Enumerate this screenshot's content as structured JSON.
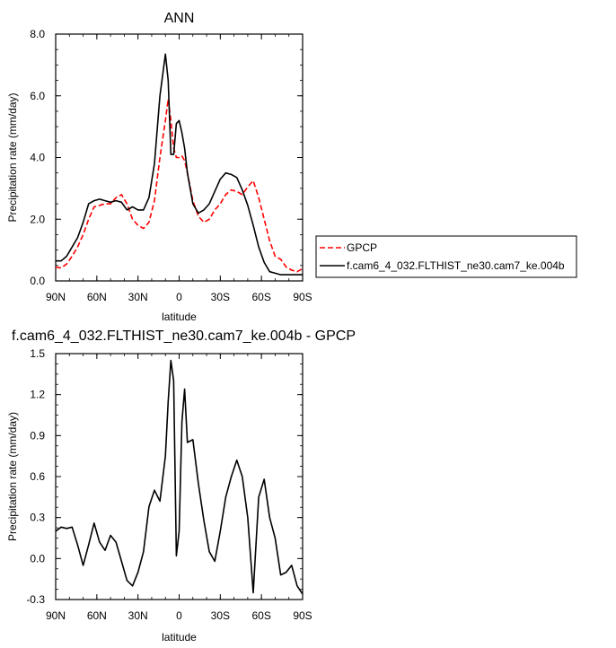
{
  "chart_data": [
    {
      "type": "line",
      "title": "ANN",
      "xlabel": "latitude",
      "ylabel": "Precipitation rate (mm/day)",
      "x_ticks": [
        "90N",
        "60N",
        "30N",
        "0",
        "30S",
        "60S",
        "90S"
      ],
      "x_tick_values": [
        -90,
        -60,
        -30,
        0,
        30,
        60,
        90
      ],
      "ylim": [
        0,
        8
      ],
      "y_ticks": [
        "0.0",
        "2.0",
        "4.0",
        "6.0",
        "8.0"
      ],
      "y_tick_values": [
        0,
        2,
        4,
        6,
        8
      ],
      "legend_placement": "right",
      "series": [
        {
          "name": "GPCP",
          "color": "#ff0000",
          "dash": true,
          "x": [
            -90,
            -86,
            -82,
            -78,
            -74,
            -70,
            -66,
            -62,
            -58,
            -54,
            -50,
            -46,
            -42,
            -38,
            -34,
            -30,
            -26,
            -22,
            -18,
            -14,
            -10,
            -8,
            -6,
            -4,
            -2,
            0,
            2,
            4,
            6,
            10,
            14,
            18,
            22,
            26,
            30,
            34,
            38,
            42,
            46,
            50,
            54,
            58,
            62,
            66,
            70,
            74,
            78,
            82,
            86,
            90
          ],
          "y": [
            0.45,
            0.42,
            0.55,
            0.8,
            1.1,
            1.5,
            2.0,
            2.4,
            2.45,
            2.5,
            2.5,
            2.7,
            2.8,
            2.5,
            2.0,
            1.8,
            1.7,
            1.9,
            2.6,
            4.0,
            5.2,
            5.9,
            5.2,
            4.3,
            4.0,
            4.0,
            4.05,
            3.9,
            3.5,
            2.6,
            2.1,
            1.9,
            2.0,
            2.3,
            2.5,
            2.8,
            2.95,
            2.9,
            2.8,
            3.05,
            3.25,
            2.7,
            2.0,
            1.3,
            0.8,
            0.7,
            0.45,
            0.35,
            0.3,
            0.4
          ]
        },
        {
          "name": "f.cam6_4_032.FLTHIST_ne30.cam7_ke.004b",
          "color": "#000000",
          "dash": false,
          "x": [
            -90,
            -86,
            -82,
            -78,
            -74,
            -70,
            -66,
            -62,
            -58,
            -54,
            -50,
            -46,
            -42,
            -38,
            -34,
            -30,
            -26,
            -22,
            -18,
            -14,
            -10,
            -8,
            -6,
            -4,
            -2,
            0,
            2,
            4,
            6,
            10,
            14,
            18,
            22,
            26,
            30,
            34,
            38,
            42,
            46,
            50,
            54,
            58,
            62,
            66,
            70,
            74,
            78,
            82,
            86,
            90
          ],
          "y": [
            0.65,
            0.65,
            0.8,
            1.1,
            1.4,
            1.9,
            2.5,
            2.6,
            2.65,
            2.6,
            2.55,
            2.6,
            2.55,
            2.3,
            2.4,
            2.3,
            2.3,
            2.7,
            3.8,
            6.0,
            7.35,
            6.5,
            4.1,
            4.1,
            5.1,
            5.2,
            4.8,
            4.3,
            3.5,
            2.5,
            2.2,
            2.3,
            2.5,
            2.9,
            3.3,
            3.5,
            3.45,
            3.35,
            2.95,
            2.45,
            1.8,
            1.1,
            0.6,
            0.3,
            0.25,
            0.2,
            0.2,
            0.2,
            0.2,
            0.2
          ]
        }
      ]
    },
    {
      "type": "line",
      "title": "f.cam6_4_032.FLTHIST_ne30.cam7_ke.004b - GPCP",
      "xlabel": "latitude",
      "ylabel": "Precipitation rate (mm/day)",
      "x_ticks": [
        "90N",
        "60N",
        "30N",
        "0",
        "30S",
        "60S",
        "90S"
      ],
      "x_tick_values": [
        -90,
        -60,
        -30,
        0,
        30,
        60,
        90
      ],
      "ylim": [
        -0.3,
        1.5
      ],
      "y_ticks": [
        "-0.3",
        "0.0",
        "0.3",
        "0.6",
        "0.9",
        "1.2",
        "1.5"
      ],
      "y_tick_values": [
        -0.3,
        0,
        0.3,
        0.6,
        0.9,
        1.2,
        1.5
      ],
      "series": [
        {
          "name": "",
          "color": "#000000",
          "dash": false,
          "x": [
            -90,
            -86,
            -82,
            -78,
            -74,
            -70,
            -66,
            -62,
            -58,
            -54,
            -50,
            -46,
            -42,
            -38,
            -34,
            -30,
            -26,
            -22,
            -18,
            -14,
            -10,
            -8,
            -6,
            -4,
            -2,
            0,
            2,
            4,
            6,
            10,
            14,
            18,
            22,
            26,
            30,
            34,
            38,
            42,
            46,
            50,
            54,
            58,
            62,
            66,
            70,
            74,
            78,
            82,
            86,
            90
          ],
          "y": [
            0.2,
            0.23,
            0.22,
            0.23,
            0.1,
            -0.05,
            0.1,
            0.26,
            0.12,
            0.06,
            0.17,
            0.12,
            -0.02,
            -0.16,
            -0.2,
            -0.1,
            0.05,
            0.38,
            0.5,
            0.42,
            0.75,
            1.15,
            1.45,
            1.3,
            0.02,
            0.2,
            1.0,
            1.24,
            0.85,
            0.87,
            0.55,
            0.28,
            0.05,
            -0.02,
            0.2,
            0.45,
            0.6,
            0.72,
            0.6,
            0.3,
            -0.25,
            0.45,
            0.58,
            0.3,
            0.15,
            -0.12,
            -0.1,
            -0.05,
            -0.2,
            -0.26
          ]
        }
      ]
    }
  ]
}
